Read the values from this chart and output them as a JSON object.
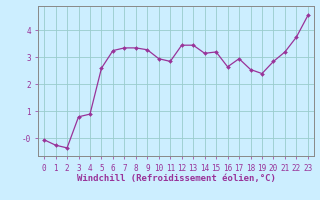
{
  "x": [
    0,
    1,
    2,
    3,
    4,
    5,
    6,
    7,
    8,
    9,
    10,
    11,
    12,
    13,
    14,
    15,
    16,
    17,
    18,
    19,
    20,
    21,
    22,
    23
  ],
  "y": [
    -0.05,
    -0.25,
    -0.35,
    0.8,
    0.9,
    2.6,
    3.25,
    3.35,
    3.35,
    3.28,
    2.95,
    2.85,
    3.45,
    3.45,
    3.15,
    3.2,
    2.65,
    2.95,
    2.55,
    2.4,
    2.85,
    3.2,
    3.75,
    4.55
  ],
  "line_color": "#993399",
  "marker": "D",
  "marker_size": 2.0,
  "linewidth": 0.9,
  "background_color": "#cceeff",
  "grid_color": "#99cccc",
  "xlabel": "Windchill (Refroidissement éolien,°C)",
  "xlabel_fontsize": 6.5,
  "ylabel_ticks": [
    0,
    1,
    2,
    3,
    4
  ],
  "ytick_labels": [
    "-0",
    "1",
    "2",
    "3",
    "4"
  ],
  "xtick_labels": [
    "0",
    "1",
    "2",
    "3",
    "4",
    "5",
    "6",
    "7",
    "8",
    "9",
    "10",
    "11",
    "12",
    "13",
    "14",
    "15",
    "16",
    "17",
    "18",
    "19",
    "20",
    "21",
    "22",
    "23"
  ],
  "ylim": [
    -0.65,
    4.9
  ],
  "xlim": [
    -0.5,
    23.5
  ],
  "tick_fontsize": 5.5,
  "xlabel_color": "#993399",
  "tick_color": "#993399",
  "spine_color": "#888888"
}
